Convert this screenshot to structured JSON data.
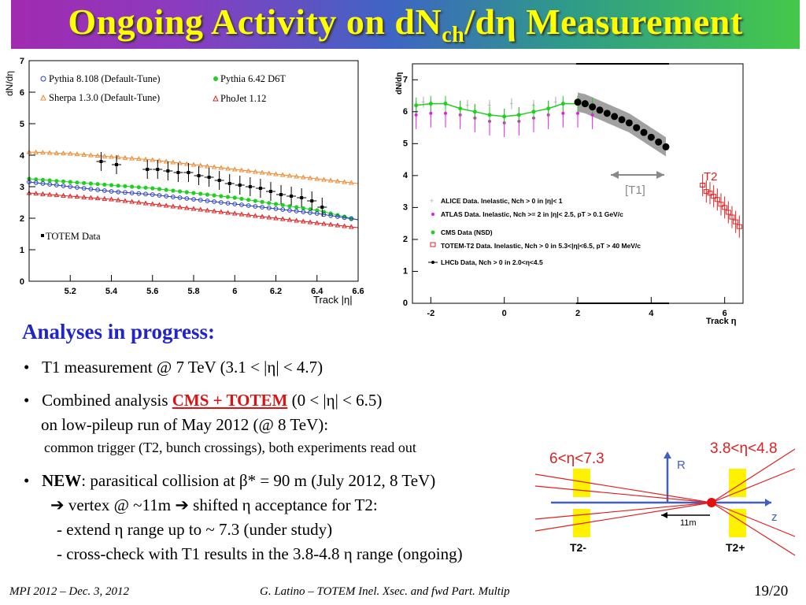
{
  "title": {
    "prefix": "Ongoing Activity on dN",
    "sub": "ch",
    "suffix": "/dη Measurement"
  },
  "left_plot": {
    "ylabel": "dN/dη",
    "xlabel": "Track |η|",
    "legend": {
      "pythia8": "Pythia 8.108 (Default-Tune)",
      "pythia6": "Pythia 6.42 D6T",
      "sherpa": "Sherpa 1.3.0 (Default-Tune)",
      "phojet": "PhoJet 1.12",
      "totem": "TOTEM Data"
    },
    "xticks": [
      "5.2",
      "5.4",
      "5.6",
      "5.8",
      "6",
      "6.2",
      "6.4",
      "6.6"
    ],
    "yticks": [
      "0",
      "1",
      "2",
      "3",
      "4",
      "5",
      "6",
      "7"
    ]
  },
  "right_plot": {
    "ylabel": "dN/dη",
    "xlabel": "Track η",
    "t1_label": "[T1]",
    "t2_label": "T2",
    "xticks": [
      "-2",
      "0",
      "2",
      "4",
      "6"
    ],
    "yticks": [
      "0",
      "1",
      "2",
      "3",
      "4",
      "5",
      "6",
      "7"
    ],
    "legend": {
      "alice": "ALICE Data. Inelastic, Nch > 0 in |η|< 1",
      "atlas": "ATLAS Data. Inelastic, Nch >= 2 in  |η|< 2.5, pT > 0.1 GeV/c",
      "cms": "CMS Data (NSD)",
      "totem_t2": "TOTEM-T2 Data. Inelastic, Nch > 0 in 5.3<|η|<6.5, pT > 40 MeV/c",
      "lhcb": "LHCb Data, Nch > 0 in 2.0<η<4.5"
    }
  },
  "chart_data": [
    {
      "type": "line",
      "xlabel": "Track |η|",
      "ylabel": "dN/dη",
      "xlim": [
        5.0,
        6.6
      ],
      "ylim": [
        0,
        7
      ],
      "series": [
        {
          "name": "Sherpa 1.3.0 (Default-Tune)",
          "x": [
            5.0,
            5.2,
            5.4,
            5.6,
            5.8,
            6.0,
            6.2,
            6.4,
            6.6
          ],
          "y": [
            4.1,
            4.05,
            3.95,
            3.85,
            3.7,
            3.55,
            3.4,
            3.25,
            3.1
          ]
        },
        {
          "name": "Pythia 6.42 D6T",
          "x": [
            5.0,
            5.2,
            5.4,
            5.6,
            5.8,
            6.0,
            6.2,
            6.4,
            6.6
          ],
          "y": [
            3.25,
            3.15,
            3.05,
            2.95,
            2.8,
            2.65,
            2.45,
            2.25,
            1.95
          ]
        },
        {
          "name": "Pythia 8.108 (Default-Tune)",
          "x": [
            5.0,
            5.2,
            5.4,
            5.6,
            5.8,
            6.0,
            6.2,
            6.4,
            6.6
          ],
          "y": [
            3.15,
            3.0,
            2.85,
            2.75,
            2.6,
            2.45,
            2.3,
            2.15,
            1.95
          ]
        },
        {
          "name": "PhoJet 1.12",
          "x": [
            5.0,
            5.2,
            5.4,
            5.6,
            5.8,
            6.0,
            6.2,
            6.4,
            6.6
          ],
          "y": [
            2.8,
            2.7,
            2.6,
            2.45,
            2.3,
            2.15,
            2.0,
            1.85,
            1.7
          ]
        },
        {
          "name": "TOTEM Data",
          "x": [
            5.35,
            5.425,
            5.575,
            5.625,
            5.675,
            5.725,
            5.775,
            5.825,
            5.875,
            5.925,
            5.975,
            6.025,
            6.075,
            6.125,
            6.175,
            6.225,
            6.275,
            6.325,
            6.375,
            6.425
          ],
          "y": [
            3.8,
            3.7,
            3.55,
            3.55,
            3.5,
            3.45,
            3.45,
            3.35,
            3.3,
            3.2,
            3.1,
            3.05,
            3.0,
            2.95,
            2.85,
            2.75,
            2.7,
            2.65,
            2.55,
            2.35
          ]
        }
      ]
    },
    {
      "type": "scatter",
      "xlabel": "Track η",
      "ylabel": "dN/dη",
      "xlim": [
        -2.5,
        6.5
      ],
      "ylim": [
        0,
        7.5
      ],
      "series": [
        {
          "name": "ALICE Data. Inelastic, Nch > 0 in |η|< 1",
          "x": [
            -2.2,
            -1.6,
            -1.0,
            -0.4,
            0.2,
            0.8,
            1.4,
            2.0
          ],
          "y": [
            6.3,
            6.3,
            6.2,
            6.2,
            6.25,
            6.2,
            6.3,
            6.3
          ]
        },
        {
          "name": "ATLAS Data. Inelastic, Nch >= 2 in  |η|< 2.5, pT > 0.1 GeV/c",
          "x": [
            -2.4,
            -2.0,
            -1.6,
            -1.2,
            -0.8,
            -0.4,
            0.0,
            0.4,
            0.8,
            1.2,
            1.6,
            2.0,
            2.4
          ],
          "y": [
            5.9,
            5.95,
            5.95,
            5.9,
            5.8,
            5.7,
            5.65,
            5.7,
            5.8,
            5.9,
            5.95,
            5.95,
            5.9
          ]
        },
        {
          "name": "CMS Data (NSD)",
          "x": [
            -2.4,
            -2.0,
            -1.6,
            -1.2,
            -0.8,
            -0.4,
            0.0,
            0.4,
            0.8,
            1.2,
            1.6,
            2.0,
            2.4
          ],
          "y": [
            6.2,
            6.25,
            6.25,
            6.1,
            6.0,
            5.9,
            5.85,
            5.9,
            6.0,
            6.1,
            6.25,
            6.25,
            6.2
          ]
        },
        {
          "name": "TOTEM-T2 Data. Inelastic, Nch > 0 in 5.3<|η|<6.5, pT > 40 MeV/c",
          "x": [
            5.4,
            5.5,
            5.6,
            5.7,
            5.8,
            5.9,
            6.0,
            6.1,
            6.2,
            6.3,
            6.4
          ],
          "y": [
            3.7,
            3.5,
            3.45,
            3.35,
            3.25,
            3.1,
            3.0,
            2.85,
            2.7,
            2.55,
            2.4
          ]
        },
        {
          "name": "LHCb Data, Nch > 0 in 2.0<η<4.5",
          "x": [
            2.0,
            2.2,
            2.4,
            2.6,
            2.8,
            3.0,
            3.2,
            3.4,
            3.6,
            3.8,
            4.0,
            4.2,
            4.4
          ],
          "y": [
            6.3,
            6.25,
            6.15,
            6.05,
            5.95,
            5.85,
            5.75,
            5.65,
            5.5,
            5.35,
            5.2,
            5.05,
            4.9
          ]
        }
      ]
    }
  ],
  "body": {
    "heading": "Analyses in progress:",
    "b1": "T1 measurement @ 7 TeV (3.1 < |η| < 4.7)",
    "b2_pre": "Combined analysis ",
    "b2_em": "CMS + TOTEM",
    "b2_post": " (0 < |η| < 6.5)",
    "b2_l2": "on low-pileup run of May 2012 (@ 8 TeV):",
    "b2_l3": "common trigger (T2, bunch crossings), both experiments read out",
    "b3_bold": "NEW",
    "b3_rest": ": parasitical collision at β* = 90 m (July 2012, 8 TeV)",
    "b3_l2": "➔ vertex @ ~11m ➔ shifted η acceptance for T2:",
    "b3_l3": "- extend η range up to ~ 7.3 (under study)",
    "b3_l4": "- cross-check with T1 results in the 3.8-4.8 η range (ongoing)"
  },
  "diagram": {
    "left_label": "6<η<7.3",
    "right_label": "3.8<η<4.8",
    "r_label": "R",
    "z_label": "z",
    "dist_label": "11m",
    "t2m": "T2-",
    "t2p": "T2+"
  },
  "footer": {
    "left": "MPI 2012 – Dec. 3, 2012",
    "mid": "G. Latino – TOTEM  Inel. Xsec. and fwd Part. Multip",
    "page": "19/20"
  }
}
